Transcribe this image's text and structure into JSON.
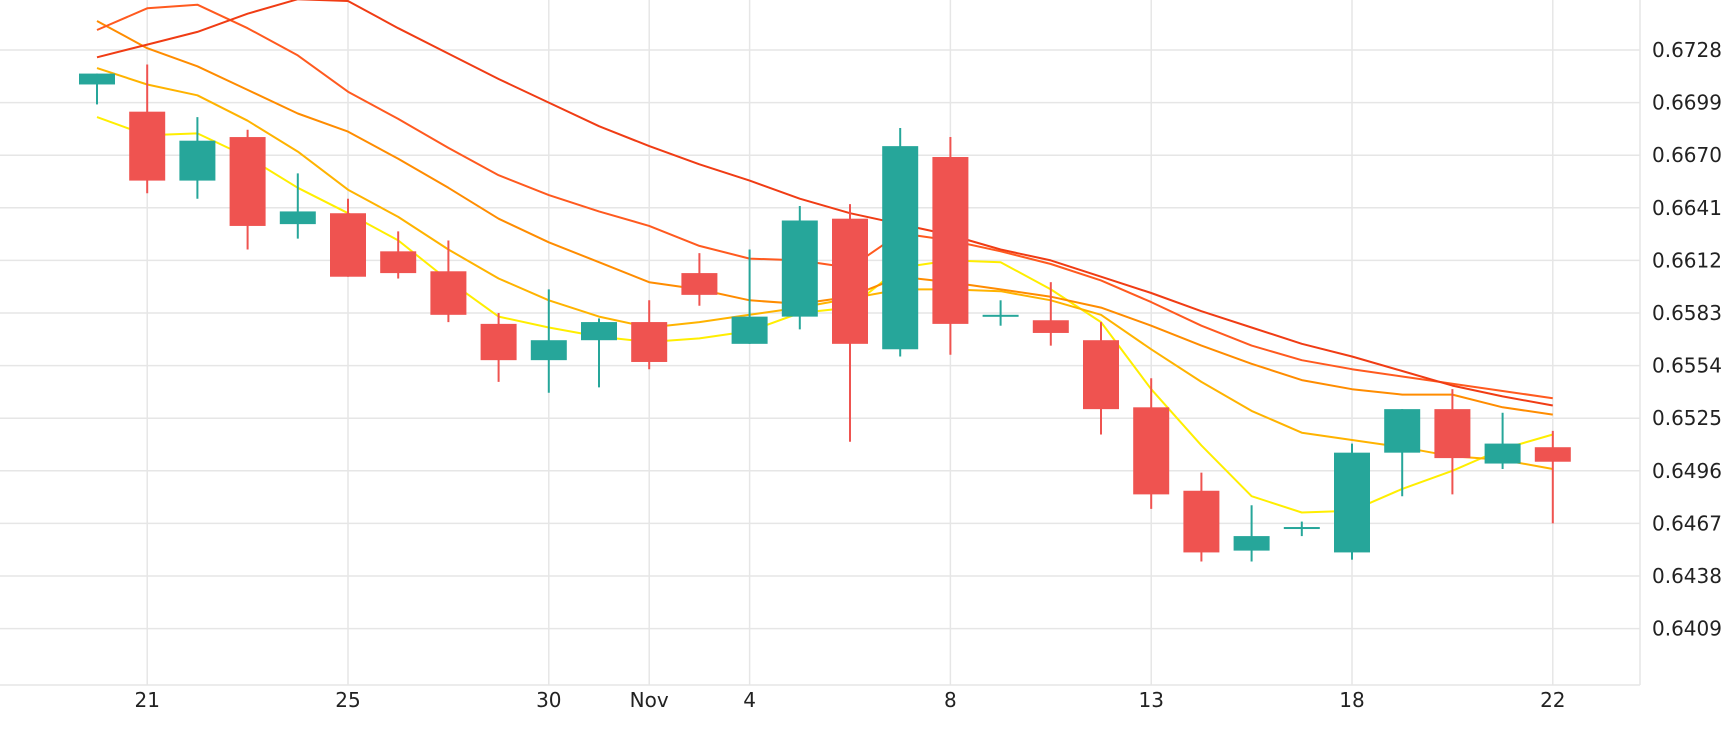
{
  "chart_data": {
    "type": "candlestick",
    "title": "",
    "xlabel": "",
    "ylabel": "",
    "x_tick_labels": [
      {
        "i": 1,
        "label": "21"
      },
      {
        "i": 5,
        "label": "25"
      },
      {
        "i": 9,
        "label": "30"
      },
      {
        "i": 11,
        "label": "Nov"
      },
      {
        "i": 13,
        "label": "4"
      },
      {
        "i": 17,
        "label": "8"
      },
      {
        "i": 21,
        "label": "13"
      },
      {
        "i": 25,
        "label": "18"
      },
      {
        "i": 29,
        "label": "22"
      }
    ],
    "y_ticks": [
      0.6409,
      0.6438,
      0.6467,
      0.6496,
      0.6525,
      0.6554,
      0.6583,
      0.6612,
      0.6641,
      0.667,
      0.6699,
      0.6728
    ],
    "ylim": [
      0.638,
      0.6757
    ],
    "grid": true,
    "colors": {
      "up": "#26a69a",
      "down": "#ef5350",
      "grid": "#e6e6e6",
      "text": "#222222"
    },
    "candles": [
      {
        "o": 0.6709,
        "h": 0.6712,
        "l": 0.6698,
        "c": 0.6715
      },
      {
        "o": 0.6694,
        "h": 0.672,
        "l": 0.6649,
        "c": 0.6656
      },
      {
        "o": 0.6656,
        "h": 0.6691,
        "l": 0.6646,
        "c": 0.6678
      },
      {
        "o": 0.668,
        "h": 0.6684,
        "l": 0.6618,
        "c": 0.6631
      },
      {
        "o": 0.6632,
        "h": 0.666,
        "l": 0.6624,
        "c": 0.6639
      },
      {
        "o": 0.6638,
        "h": 0.6646,
        "l": 0.6603,
        "c": 0.6603
      },
      {
        "o": 0.6617,
        "h": 0.6628,
        "l": 0.6602,
        "c": 0.6605
      },
      {
        "o": 0.6606,
        "h": 0.6623,
        "l": 0.6578,
        "c": 0.6582
      },
      {
        "o": 0.6577,
        "h": 0.6583,
        "l": 0.6545,
        "c": 0.6557
      },
      {
        "o": 0.6557,
        "h": 0.6596,
        "l": 0.6539,
        "c": 0.6568
      },
      {
        "o": 0.6568,
        "h": 0.658,
        "l": 0.6542,
        "c": 0.6578
      },
      {
        "o": 0.6578,
        "h": 0.659,
        "l": 0.6552,
        "c": 0.6556
      },
      {
        "o": 0.6605,
        "h": 0.6616,
        "l": 0.6587,
        "c": 0.6593
      },
      {
        "o": 0.6566,
        "h": 0.6618,
        "l": 0.6566,
        "c": 0.6581
      },
      {
        "o": 0.6581,
        "h": 0.6642,
        "l": 0.6574,
        "c": 0.6634
      },
      {
        "o": 0.6635,
        "h": 0.6643,
        "l": 0.6512,
        "c": 0.6566
      },
      {
        "o": 0.6563,
        "h": 0.6685,
        "l": 0.6559,
        "c": 0.6675
      },
      {
        "o": 0.6669,
        "h": 0.668,
        "l": 0.656,
        "c": 0.6577
      },
      {
        "o": 0.6581,
        "h": 0.659,
        "l": 0.6576,
        "c": 0.6582
      },
      {
        "o": 0.6579,
        "h": 0.66,
        "l": 0.6565,
        "c": 0.6572
      },
      {
        "o": 0.6568,
        "h": 0.6578,
        "l": 0.6516,
        "c": 0.653
      },
      {
        "o": 0.6531,
        "h": 0.6547,
        "l": 0.6475,
        "c": 0.6483
      },
      {
        "o": 0.6485,
        "h": 0.6495,
        "l": 0.6446,
        "c": 0.6451
      },
      {
        "o": 0.6452,
        "h": 0.6477,
        "l": 0.6446,
        "c": 0.646
      },
      {
        "o": 0.6465,
        "h": 0.6468,
        "l": 0.646,
        "c": 0.6465
      },
      {
        "o": 0.6451,
        "h": 0.6511,
        "l": 0.6447,
        "c": 0.6506
      },
      {
        "o": 0.6506,
        "h": 0.653,
        "l": 0.6482,
        "c": 0.653
      },
      {
        "o": 0.653,
        "h": 0.6541,
        "l": 0.6483,
        "c": 0.6503
      },
      {
        "o": 0.65,
        "h": 0.6528,
        "l": 0.6497,
        "c": 0.6511
      },
      {
        "o": 0.6509,
        "h": 0.6518,
        "l": 0.6467,
        "c": 0.6501
      }
    ],
    "series": [
      {
        "color": "#ffee00",
        "values": [
          0.6691,
          0.6681,
          0.6682,
          0.6669,
          0.6652,
          0.6638,
          0.6623,
          0.6601,
          0.6581,
          0.6575,
          0.657,
          0.6567,
          0.6569,
          0.6573,
          0.6583,
          0.6586,
          0.6608,
          0.6612,
          0.6611,
          0.6596,
          0.6578,
          0.6541,
          0.651,
          0.6482,
          0.6473,
          0.6474,
          0.6486,
          0.6496,
          0.6508,
          0.6516
        ]
      },
      {
        "color": "#ffb300",
        "values": [
          0.6718,
          0.6709,
          0.6703,
          0.6689,
          0.6672,
          0.6651,
          0.6636,
          0.6618,
          0.6602,
          0.659,
          0.6581,
          0.6575,
          0.6578,
          0.6582,
          0.6586,
          0.6591,
          0.6596,
          0.6596,
          0.6595,
          0.659,
          0.6582,
          0.6563,
          0.6545,
          0.6529,
          0.6517,
          0.6513,
          0.6509,
          0.6504,
          0.6502,
          0.6497
        ]
      },
      {
        "color": "#ff8c00",
        "values": [
          0.6744,
          0.6729,
          0.6719,
          0.6706,
          0.6693,
          0.6683,
          0.6668,
          0.6652,
          0.6635,
          0.6622,
          0.6611,
          0.66,
          0.6596,
          0.659,
          0.6588,
          0.6592,
          0.6603,
          0.66,
          0.6596,
          0.6592,
          0.6586,
          0.6576,
          0.6565,
          0.6555,
          0.6546,
          0.6541,
          0.6538,
          0.6538,
          0.6531,
          0.6527
        ]
      },
      {
        "color": "#ff5a1f",
        "values": [
          0.6739,
          0.6751,
          0.6753,
          0.674,
          0.6725,
          0.6705,
          0.669,
          0.6674,
          0.6659,
          0.6648,
          0.6639,
          0.6631,
          0.662,
          0.6613,
          0.6612,
          0.6608,
          0.6627,
          0.6623,
          0.6617,
          0.661,
          0.6601,
          0.6589,
          0.6576,
          0.6565,
          0.6557,
          0.6552,
          0.6548,
          0.6544,
          0.654,
          0.6536
        ]
      },
      {
        "color": "#f03c14",
        "values": [
          0.6724,
          0.6731,
          0.6738,
          0.6748,
          0.6756,
          0.6755,
          0.674,
          0.6726,
          0.6712,
          0.6699,
          0.6686,
          0.6675,
          0.6665,
          0.6656,
          0.6646,
          0.6638,
          0.6632,
          0.6626,
          0.6618,
          0.6612,
          0.6603,
          0.6594,
          0.6584,
          0.6575,
          0.6566,
          0.6559,
          0.6551,
          0.6543,
          0.6537,
          0.6532
        ]
      }
    ]
  }
}
